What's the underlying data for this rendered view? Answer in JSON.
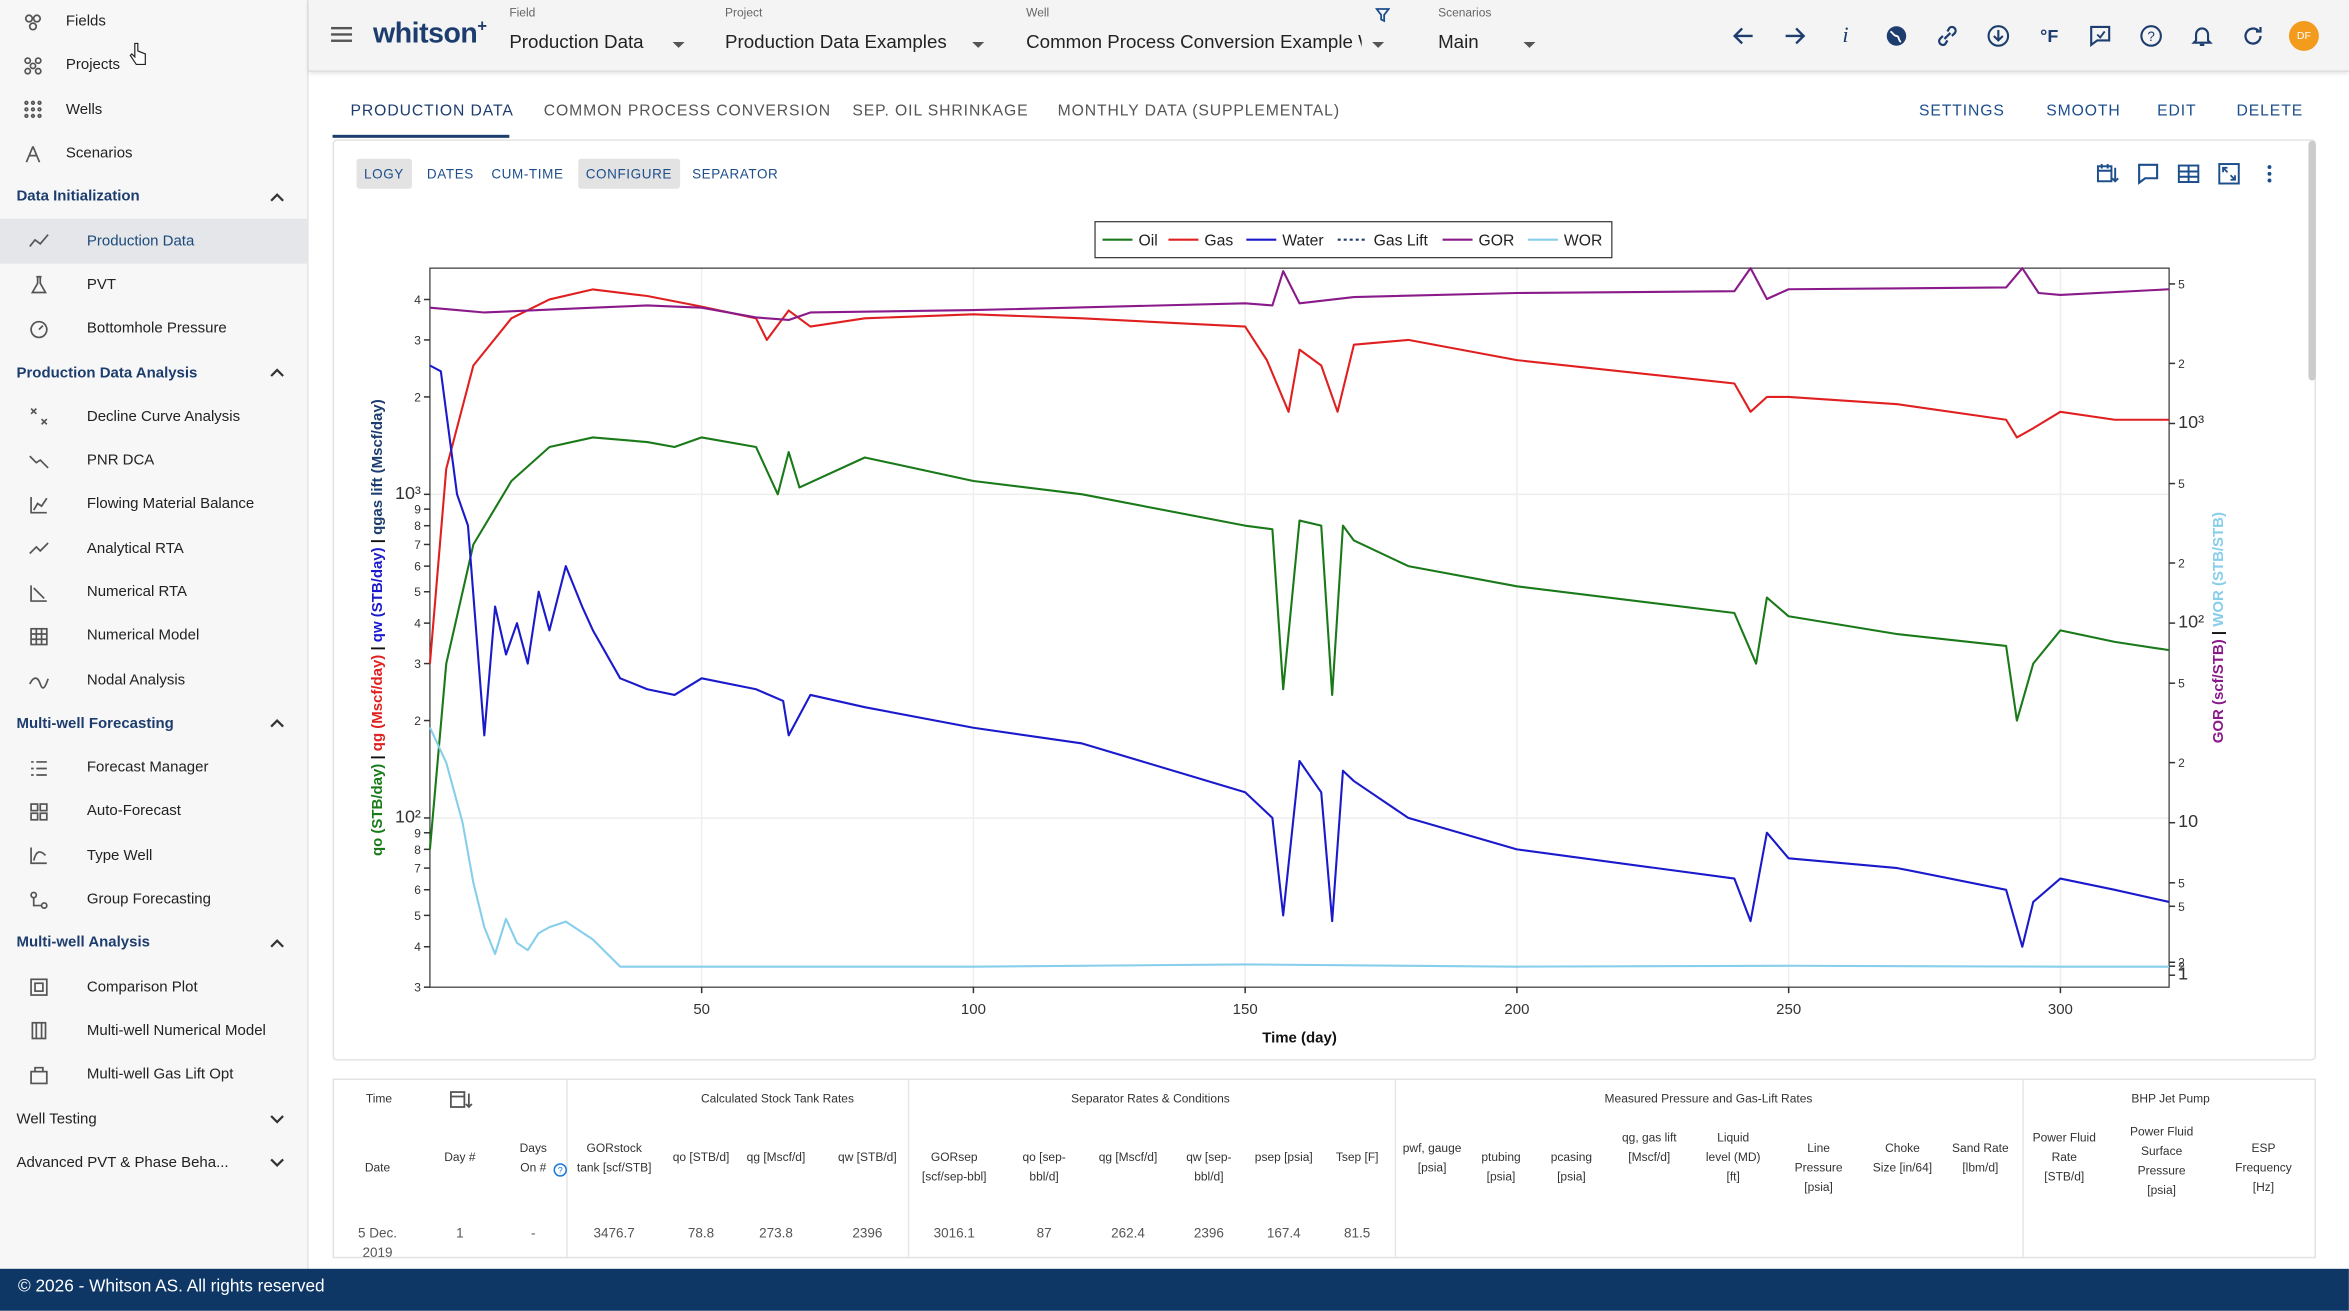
{
  "sidebar": {
    "top_items": [
      {
        "label": "Fields",
        "icon": "fields-icon"
      },
      {
        "label": "Projects",
        "icon": "projects-icon"
      },
      {
        "label": "Wells",
        "icon": "wells-icon"
      },
      {
        "label": "Scenarios",
        "icon": "scenarios-icon"
      }
    ],
    "sections": [
      {
        "title": "Data Initialization",
        "expanded": true,
        "items": [
          {
            "label": "Production Data",
            "icon": "production-data-icon",
            "active": true
          },
          {
            "label": "PVT",
            "icon": "pvt-icon"
          },
          {
            "label": "Bottomhole Pressure",
            "icon": "bottomhole-pressure-icon"
          }
        ]
      },
      {
        "title": "Production Data Analysis",
        "expanded": true,
        "items": [
          {
            "label": "Decline Curve Analysis",
            "icon": "decline-curve-icon"
          },
          {
            "label": "PNR DCA",
            "icon": "pnr-dca-icon"
          },
          {
            "label": "Flowing Material Balance",
            "icon": "flowing-material-balance-icon"
          },
          {
            "label": "Analytical RTA",
            "icon": "analytical-rta-icon"
          },
          {
            "label": "Numerical RTA",
            "icon": "numerical-rta-icon"
          },
          {
            "label": "Numerical Model",
            "icon": "numerical-model-icon"
          },
          {
            "label": "Nodal Analysis",
            "icon": "nodal-analysis-icon"
          }
        ]
      },
      {
        "title": "Multi-well Forecasting",
        "expanded": true,
        "items": [
          {
            "label": "Forecast Manager",
            "icon": "forecast-manager-icon"
          },
          {
            "label": "Auto-Forecast",
            "icon": "auto-forecast-icon"
          },
          {
            "label": "Type Well",
            "icon": "type-well-icon"
          },
          {
            "label": "Group Forecasting",
            "icon": "group-forecasting-icon"
          }
        ]
      },
      {
        "title": "Multi-well Analysis",
        "expanded": true,
        "items": [
          {
            "label": "Comparison Plot",
            "icon": "comparison-plot-icon"
          },
          {
            "label": "Multi-well Numerical Model",
            "icon": "multiwell-numerical-model-icon"
          },
          {
            "label": "Multi-well Gas Lift Opt",
            "icon": "multiwell-gas-lift-icon"
          }
        ]
      },
      {
        "title": "Well Testing",
        "expanded": false,
        "items": []
      },
      {
        "title": "Advanced PVT & Phase Beha...",
        "expanded": false,
        "items": []
      }
    ]
  },
  "header": {
    "logo": "whitson",
    "logo_sup": "+",
    "field": {
      "caption": "Field",
      "value": "Production Data"
    },
    "project": {
      "caption": "Project",
      "value": "Production Data Examples"
    },
    "well": {
      "caption": "Well",
      "value": "Common Process Conversion Example Well"
    },
    "scenarios": {
      "caption": "Scenarios",
      "value": "Main"
    },
    "avatar": "DF"
  },
  "tabs": [
    "PRODUCTION DATA",
    "COMMON PROCESS CONVERSION",
    "SEP. OIL SHRINKAGE",
    "MONTHLY DATA (SUPPLEMENTAL)"
  ],
  "actions": [
    "SETTINGS",
    "SMOOTH",
    "EDIT",
    "DELETE"
  ],
  "chips": [
    {
      "label": "LOGY",
      "on": true
    },
    {
      "label": "DATES",
      "on": false
    },
    {
      "label": "CUM-TIME",
      "on": false
    },
    {
      "label": "CONFIGURE",
      "on": true
    },
    {
      "label": "SEPARATOR",
      "on": false
    }
  ],
  "chart_data": {
    "type": "line",
    "xlabel": "Time (day)",
    "xlim": [
      0,
      320
    ],
    "x_ticks": [
      50,
      100,
      150,
      200,
      250,
      300
    ],
    "y_left": {
      "scale": "log",
      "range": [
        30,
        5000
      ],
      "ticks": [
        "4",
        "3",
        "2",
        "10³",
        "9",
        "8",
        "7",
        "6",
        "5",
        "4",
        "3",
        "2",
        "10²",
        "9",
        "8",
        "7",
        "6",
        "5",
        "4",
        "3"
      ],
      "label_parts": [
        "qo (STB/day)",
        "|",
        "qg (Mscf/day)",
        "|",
        "qw (STB/day)",
        "|",
        "qgas lift (Mscf/day)"
      ]
    },
    "y_right": {
      "scale": "log",
      "range": [
        1.5,
        6000
      ],
      "ticks": [
        "5",
        "2",
        "10³",
        "5",
        "2",
        "10²",
        "5",
        "2",
        "10",
        "5",
        "2",
        "1",
        "5",
        "2"
      ],
      "label_parts": [
        "GOR (scf/STB)",
        "|",
        "WOR (STB/STB)"
      ]
    },
    "legend": {
      "placement": "top-center",
      "entries": [
        "Oil",
        "Gas",
        "Water",
        "Gas Lift",
        "GOR",
        "WOR"
      ]
    },
    "series": [
      {
        "name": "Oil",
        "color": "#1a7a1a",
        "axis": "left",
        "x": [
          0,
          3,
          8,
          15,
          22,
          30,
          40,
          45,
          50,
          60,
          64,
          66,
          68,
          80,
          100,
          120,
          150,
          155,
          157,
          160,
          164,
          166,
          168,
          170,
          180,
          200,
          240,
          244,
          246,
          250,
          270,
          290,
          292,
          295,
          300,
          310,
          320
        ],
        "y": [
          80,
          300,
          700,
          1100,
          1400,
          1500,
          1450,
          1400,
          1500,
          1400,
          1000,
          1350,
          1050,
          1300,
          1100,
          1000,
          800,
          780,
          250,
          830,
          800,
          240,
          800,
          720,
          600,
          520,
          430,
          300,
          480,
          420,
          370,
          340,
          200,
          300,
          380,
          350,
          330
        ]
      },
      {
        "name": "Gas",
        "color": "#e02020",
        "axis": "left",
        "x": [
          0,
          3,
          8,
          15,
          22,
          30,
          40,
          50,
          60,
          62,
          66,
          70,
          80,
          100,
          120,
          150,
          154,
          158,
          160,
          164,
          167,
          170,
          180,
          200,
          240,
          243,
          246,
          250,
          270,
          290,
          292,
          295,
          300,
          310,
          320
        ],
        "y": [
          300,
          1200,
          2500,
          3500,
          4000,
          4300,
          4100,
          3800,
          3500,
          3000,
          3700,
          3300,
          3500,
          3600,
          3500,
          3300,
          2600,
          1800,
          2800,
          2500,
          1800,
          2900,
          3000,
          2600,
          2200,
          1800,
          2000,
          2000,
          1900,
          1700,
          1500,
          1600,
          1800,
          1700,
          1700
        ]
      },
      {
        "name": "Water",
        "color": "#1a1acc",
        "axis": "left",
        "x": [
          0,
          2,
          5,
          7,
          10,
          12,
          14,
          16,
          18,
          20,
          22,
          25,
          28,
          30,
          35,
          40,
          45,
          50,
          60,
          65,
          66,
          70,
          80,
          100,
          120,
          150,
          155,
          157,
          160,
          164,
          166,
          168,
          170,
          180,
          200,
          240,
          243,
          246,
          250,
          270,
          290,
          293,
          295,
          300,
          310,
          320
        ],
        "y": [
          2500,
          2400,
          1000,
          800,
          180,
          450,
          320,
          400,
          300,
          500,
          380,
          600,
          450,
          380,
          270,
          250,
          240,
          270,
          250,
          230,
          180,
          240,
          220,
          190,
          170,
          120,
          100,
          50,
          150,
          120,
          48,
          140,
          130,
          100,
          80,
          65,
          48,
          90,
          75,
          70,
          60,
          40,
          55,
          65,
          60,
          55
        ]
      },
      {
        "name": "GOR",
        "color": "#8a1a8a",
        "axis": "right",
        "x": [
          0,
          5,
          10,
          20,
          30,
          40,
          50,
          60,
          66,
          70,
          100,
          150,
          155,
          157,
          160,
          170,
          200,
          240,
          243,
          246,
          250,
          290,
          293,
          296,
          300,
          320
        ],
        "y": [
          3800,
          3700,
          3600,
          3700,
          3800,
          3900,
          3800,
          3400,
          3300,
          3600,
          3700,
          4000,
          3900,
          5800,
          4000,
          4300,
          4500,
          4600,
          6000,
          4200,
          4700,
          4800,
          6200,
          4500,
          4400,
          4700
        ]
      },
      {
        "name": "WOR",
        "color": "#87ceeb",
        "axis": "right",
        "x": [
          0,
          3,
          6,
          8,
          10,
          12,
          14,
          16,
          18,
          20,
          22,
          25,
          30,
          35,
          50,
          100,
          150,
          200,
          250,
          300,
          320
        ],
        "y": [
          30,
          20,
          10,
          5,
          3,
          2.2,
          3.3,
          2.5,
          2.3,
          2.8,
          3,
          3.2,
          2.6,
          1.9,
          1.9,
          1.9,
          1.95,
          1.9,
          1.92,
          1.9,
          1.9
        ]
      }
    ]
  },
  "table": {
    "groups": [
      "Calculated Stock Tank Rates",
      "Separator Rates & Conditions",
      "Measured Pressure and Gas-Lift Rates",
      "BHP Jet Pump"
    ],
    "time_label": "Time",
    "columns": [
      "Date",
      "Day #",
      "Days On #",
      "GORstock tank [scf/STB]",
      "qo [STB/d]",
      "qg [Mscf/d]",
      "qw [STB/d]",
      "GORsep [scf/sep-bbl]",
      "qo [sep-bbl/d]",
      "qg [Mscf/d]",
      "qw [sep-bbl/d]",
      "psep [psia]",
      "Tsep [F]",
      "pwf, gauge [psia]",
      "ptubing [psia]",
      "pcasing [psia]",
      "qg, gas lift [Mscf/d]",
      "Liquid level (MD) [ft]",
      "Line Pressure [psia]",
      "Choke Size [in/64]",
      "Sand Rate [lbm/d]",
      "Power Fluid Rate [STB/d]",
      "Power Fluid Surface Pressure [psia]",
      "ESP Frequency [Hz]"
    ],
    "row": [
      "5 Dec. 2019",
      "1",
      "-",
      "3476.7",
      "78.8",
      "273.8",
      "2396",
      "3016.1",
      "87",
      "262.4",
      "2396",
      "167.4",
      "81.5"
    ]
  },
  "footer": "© 2026 - Whitson AS. All rights reserved"
}
